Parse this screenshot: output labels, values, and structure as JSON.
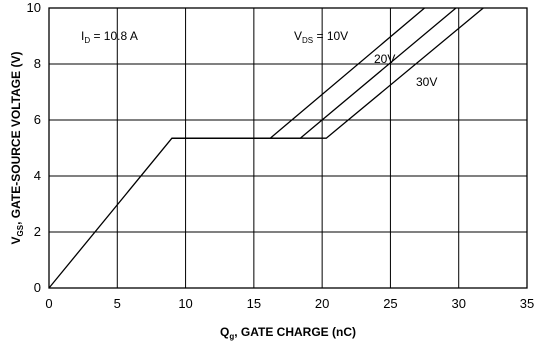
{
  "chart_data": {
    "type": "line",
    "xlabel": "Q<sub>g</sub>, GATE CHARGE (nC)",
    "xlabel_main": "Q",
    "xlabel_sub": "g",
    "xlabel_rest": ", GATE CHARGE (nC)",
    "ylabel_main": "V",
    "ylabel_sub": "GS",
    "ylabel_rest": ", GATE-SOURCE VOLTAGE (V)",
    "xlim": [
      0,
      35
    ],
    "ylim": [
      0,
      10
    ],
    "x_ticks": [
      0,
      5,
      10,
      15,
      20,
      25,
      30,
      35
    ],
    "y_ticks": [
      0,
      2,
      4,
      6,
      8,
      10
    ],
    "grid": true,
    "annotations": {
      "id_main": "I",
      "id_sub": "D",
      "id_rest": " = 10.8 A",
      "vds_main": "V",
      "vds_sub": "DS",
      "vds_rest": " = 10V",
      "label_20v": "20V",
      "label_30v": "30V"
    },
    "series": [
      {
        "values": [
          [
            0,
            0
          ],
          [
            9,
            5.35
          ],
          [
            16.2,
            5.35
          ],
          [
            27.5,
            10
          ]
        ]
      },
      {
        "values": [
          [
            9,
            5.35
          ],
          [
            18.4,
            5.35
          ],
          [
            29.8,
            10
          ]
        ]
      },
      {
        "values": [
          [
            9,
            5.35
          ],
          [
            20.3,
            5.35
          ],
          [
            31.8,
            10
          ]
        ]
      }
    ]
  }
}
